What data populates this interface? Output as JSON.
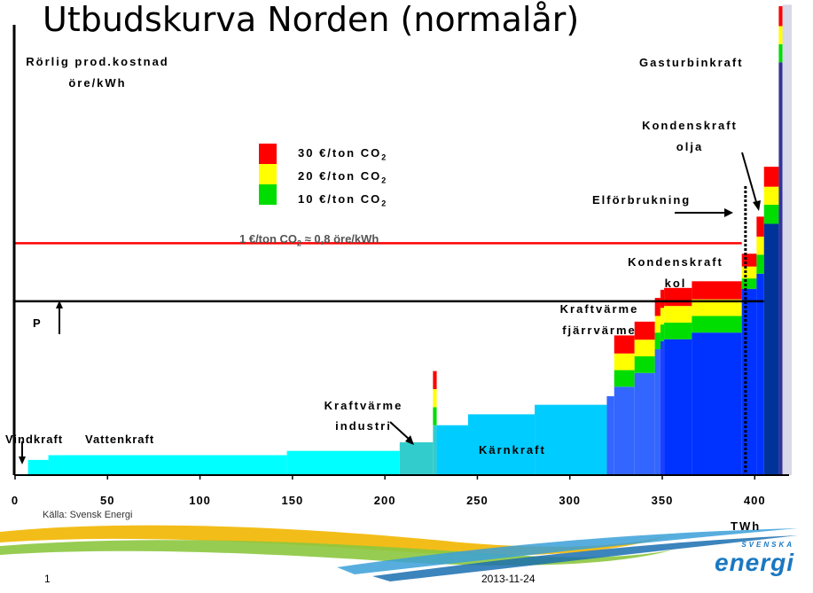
{
  "title": "Utbudskurva Norden (normalår)",
  "source": "Källa: Svensk Energi",
  "footer": {
    "page": "1",
    "date": "2013-11-24"
  },
  "logo": {
    "small": "SVENSKA",
    "word": "energi"
  },
  "chart_data": {
    "type": "bar",
    "ylabel_line1": "Rörlig prod.kostnad",
    "ylabel_line2": "öre/kWh",
    "xlabel": "TWh",
    "xlim": [
      0,
      420
    ],
    "xticks": [
      0,
      50,
      100,
      150,
      200,
      250,
      300,
      350,
      400
    ],
    "ylim": [
      0,
      100
    ],
    "legend": {
      "placement": "upper-left",
      "items": [
        {
          "label": "30 €/ton CO",
          "sub": "2",
          "color": "#ff0000"
        },
        {
          "label": "20 €/ton CO",
          "sub": "2",
          "color": "#ffff00"
        },
        {
          "label": "10 €/ton CO",
          "sub": "2",
          "color": "#00dd00"
        }
      ],
      "note": "1 €/ton CO",
      "note_sub": "2",
      "note_tail": " ≈ 0,8 öre/kWh"
    },
    "colors": {
      "tier30": "#ff0000",
      "tier20": "#ffff00",
      "tier10": "#00dd00"
    },
    "segments": [
      {
        "x0": 7,
        "x1": 18,
        "base": 3.2,
        "color": "#00ffff"
      },
      {
        "x0": 18,
        "x1": 147,
        "base": 4.2,
        "color": "#00ffff"
      },
      {
        "x0": 147,
        "x1": 208,
        "base": 5.1,
        "color": "#00ffff"
      },
      {
        "x0": 208,
        "x1": 226,
        "base": 6.9,
        "color": "#33cccc"
      },
      {
        "x0": 226,
        "x1": 228,
        "base": 10.5,
        "color": "#33cccc",
        "c10": 3.8,
        "c20": 3.8,
        "c30": 3.8
      },
      {
        "x0": 228,
        "x1": 245,
        "base": 10.5,
        "color": "#00ccff"
      },
      {
        "x0": 245,
        "x1": 281,
        "base": 12.8,
        "color": "#00ccff"
      },
      {
        "x0": 281,
        "x1": 320,
        "base": 14.8,
        "color": "#00ccff"
      },
      {
        "x0": 320,
        "x1": 324,
        "base": 16.6,
        "color": "#3366ff"
      },
      {
        "x0": 324,
        "x1": 335,
        "base": 18.6,
        "color": "#3366ff",
        "c10": 3.5,
        "c20": 3.5,
        "c30": 3.8
      },
      {
        "x0": 335,
        "x1": 346,
        "base": 21.5,
        "color": "#3366ff",
        "c10": 3.5,
        "c20": 3.5,
        "c30": 3.8
      },
      {
        "x0": 346,
        "x1": 349,
        "base": 26.5,
        "color": "#3366ff",
        "c10": 3.5,
        "c20": 3.5,
        "c30": 3.8
      },
      {
        "x0": 349,
        "x1": 351,
        "base": 28.2,
        "color": "#1f3fff",
        "c10": 3.5,
        "c20": 3.5,
        "c30": 3.8
      },
      {
        "x0": 351,
        "x1": 366,
        "base": 28.6,
        "color": "#0033ff",
        "c10": 3.5,
        "c20": 3.5,
        "c30": 3.8
      },
      {
        "x0": 366,
        "x1": 393,
        "base": 30.0,
        "color": "#0033ff",
        "c10": 3.5,
        "c20": 3.5,
        "c30": 3.8
      },
      {
        "x0": 393,
        "x1": 401,
        "base": 39.2,
        "color": "#0033ff",
        "c10": 2.2,
        "c20": 2.5,
        "c30": 2.7
      },
      {
        "x0": 401,
        "x1": 405,
        "base": 42.4,
        "color": "#0033ff",
        "c10": 4.0,
        "c20": 3.8,
        "c30": 4.2
      },
      {
        "x0": 405,
        "x1": 413,
        "base": 52.9,
        "color": "#003399",
        "c10": 4.0,
        "c20": 3.8,
        "c30": 4.2
      },
      {
        "x0": 413,
        "x1": 415,
        "base": 86.9,
        "color": "#333399",
        "c10": 3.8,
        "c20": 3.8,
        "c30": 4.2
      },
      {
        "x0": 415,
        "x1": 420,
        "base": 0,
        "color": "#d8d8e8"
      }
    ],
    "price_lines": [
      {
        "value": 48.8,
        "color": "#ff0000",
        "x1": 393
      },
      {
        "value": 36.6,
        "color": "#000000",
        "x1": 405
      }
    ],
    "consumption_line": {
      "x": 395,
      "label": "Elförbrukning"
    },
    "p_label": "P",
    "annotations": [
      {
        "id": "vindkraft",
        "text": "Vindkraft"
      },
      {
        "id": "vattenkraft",
        "text": "Vattenkraft"
      },
      {
        "id": "kraftvarme-industri-1",
        "text": "Kraftvärme"
      },
      {
        "id": "kraftvarme-industri-2",
        "text": "industri"
      },
      {
        "id": "karnkraft",
        "text": "Kärnkraft"
      },
      {
        "id": "kraftvarme-fjarr-1",
        "text": "Kraftvärme"
      },
      {
        "id": "kraftvarme-fjarr-2",
        "text": "fjärrvärme"
      },
      {
        "id": "kondens-kol-1",
        "text": "Kondenskraft"
      },
      {
        "id": "kondens-kol-2",
        "text": "kol"
      },
      {
        "id": "kondens-olja-1",
        "text": "Kondenskraft"
      },
      {
        "id": "kondens-olja-2",
        "text": "olja"
      },
      {
        "id": "gasturbin",
        "text": "Gasturbinkraft"
      }
    ]
  }
}
